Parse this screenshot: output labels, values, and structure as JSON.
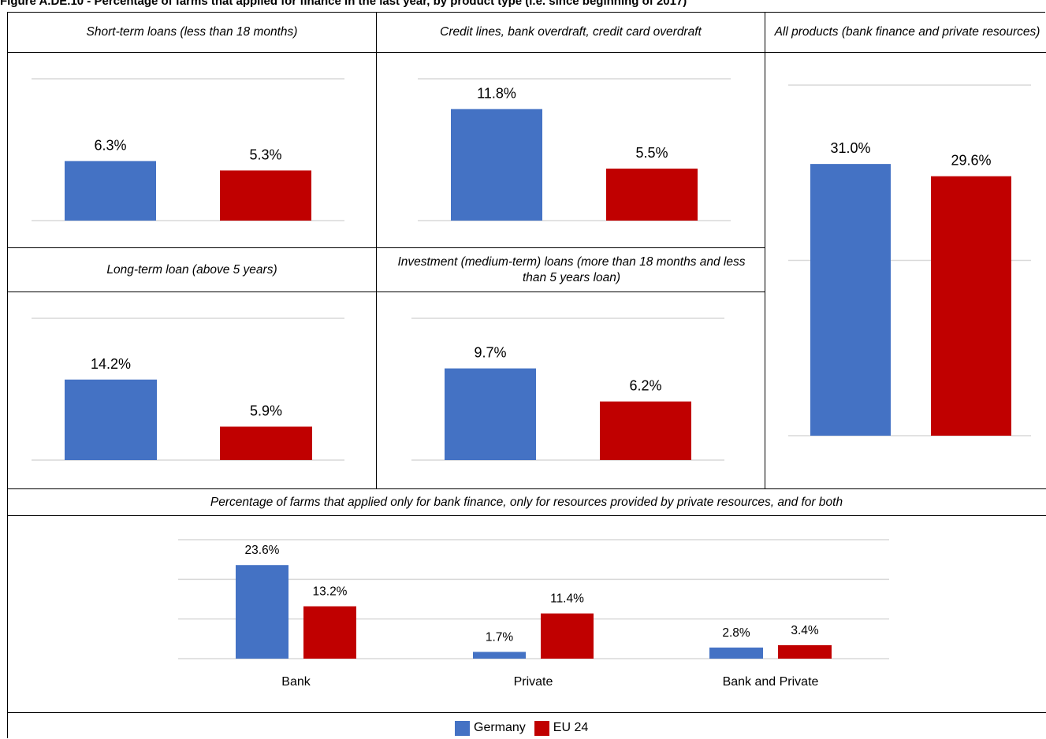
{
  "figure_title": "Figure A.DE.10 - Percentage of farms that applied for finance in the last year, by product type (i.e. since beginning of 2017)",
  "colors": {
    "germany": "#4472C4",
    "eu24": "#C00000",
    "gridline": "#D9D9D9"
  },
  "legend": [
    {
      "name": "Germany",
      "color": "#4472C4"
    },
    {
      "name": "EU 24",
      "color": "#C00000"
    }
  ],
  "chart_data": [
    {
      "type": "bar",
      "title": "Short-term loans (less than 18 months)",
      "categories": [
        ""
      ],
      "series": [
        {
          "name": "Germany",
          "values": [
            6.3
          ],
          "labels": [
            "6.3%"
          ]
        },
        {
          "name": "EU 24",
          "values": [
            5.3
          ],
          "labels": [
            "5.3%"
          ]
        }
      ],
      "ylim": [
        0,
        15
      ],
      "grid": true
    },
    {
      "type": "bar",
      "title": "Credit lines, bank overdraft, credit card overdraft",
      "categories": [
        ""
      ],
      "series": [
        {
          "name": "Germany",
          "values": [
            11.8
          ],
          "labels": [
            "11.8%"
          ]
        },
        {
          "name": "EU 24",
          "values": [
            5.5
          ],
          "labels": [
            "5.5%"
          ]
        }
      ],
      "ylim": [
        0,
        15
      ],
      "grid": true
    },
    {
      "type": "bar",
      "title": "All products (bank finance and private resources)",
      "categories": [
        ""
      ],
      "series": [
        {
          "name": "Germany",
          "values": [
            31.0
          ],
          "labels": [
            "31.0%"
          ]
        },
        {
          "name": "EU 24",
          "values": [
            29.6
          ],
          "labels": [
            "29.6%"
          ]
        }
      ],
      "ylim": [
        0,
        40
      ],
      "grid": true
    },
    {
      "type": "bar",
      "title": "Long-term loan (above 5 years)",
      "categories": [
        ""
      ],
      "series": [
        {
          "name": "Germany",
          "values": [
            14.2
          ],
          "labels": [
            "14.2%"
          ]
        },
        {
          "name": "EU 24",
          "values": [
            5.9
          ],
          "labels": [
            "5.9%"
          ]
        }
      ],
      "ylim": [
        0,
        25
      ],
      "grid": true
    },
    {
      "type": "bar",
      "title": "Investment (medium-term) loans (more than 18 months and less than 5 years loan)",
      "categories": [
        ""
      ],
      "series": [
        {
          "name": "Germany",
          "values": [
            9.7
          ],
          "labels": [
            "9.7%"
          ]
        },
        {
          "name": "EU 24",
          "values": [
            6.2
          ],
          "labels": [
            "6.2%"
          ]
        }
      ],
      "ylim": [
        0,
        15
      ],
      "grid": true
    },
    {
      "type": "bar",
      "title": "Percentage of farms that applied only for bank finance, only for resources provided by private resources, and for both",
      "categories": [
        "Bank",
        "Private",
        "Bank and Private"
      ],
      "series": [
        {
          "name": "Germany",
          "values": [
            23.6,
            1.7,
            2.8
          ],
          "labels": [
            "23.6%",
            "1.7%",
            "2.8%"
          ]
        },
        {
          "name": "EU 24",
          "values": [
            13.2,
            11.4,
            3.4
          ],
          "labels": [
            "13.2%",
            "11.4%",
            "3.4%"
          ]
        }
      ],
      "ylim": [
        0,
        30
      ],
      "grid": true
    }
  ]
}
